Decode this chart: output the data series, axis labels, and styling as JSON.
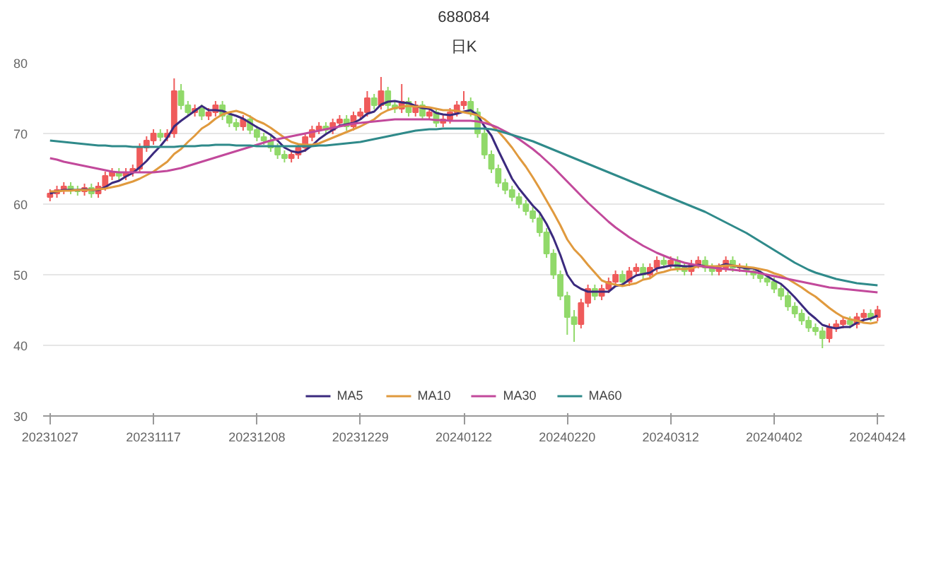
{
  "chart_data": {
    "type": "candlestick",
    "title": "688084",
    "subtitle": "日K",
    "categories": [
      "20231027",
      null,
      null,
      null,
      null,
      null,
      null,
      null,
      null,
      null,
      null,
      null,
      null,
      null,
      null,
      "20231117",
      null,
      null,
      null,
      null,
      null,
      null,
      null,
      null,
      null,
      null,
      null,
      null,
      null,
      null,
      "20231208",
      null,
      null,
      null,
      null,
      null,
      null,
      null,
      null,
      null,
      null,
      null,
      null,
      null,
      null,
      "20231229",
      null,
      null,
      null,
      null,
      null,
      null,
      null,
      null,
      null,
      null,
      null,
      null,
      null,
      null,
      "20240122",
      null,
      null,
      null,
      null,
      null,
      null,
      null,
      null,
      null,
      null,
      null,
      null,
      null,
      null,
      "20240220",
      null,
      null,
      null,
      null,
      null,
      null,
      null,
      null,
      null,
      null,
      null,
      null,
      null,
      null,
      "20240312",
      null,
      null,
      null,
      null,
      null,
      null,
      null,
      null,
      null,
      null,
      null,
      null,
      null,
      null,
      "20240402",
      null,
      null,
      null,
      null,
      null,
      null,
      null,
      null,
      null,
      null,
      null,
      null,
      null,
      null,
      "20240424"
    ],
    "ohlc": [
      [
        61,
        62.1,
        60.4,
        61.5
      ],
      [
        61.5,
        62.6,
        60.9,
        62
      ],
      [
        62,
        63.1,
        61.4,
        62.5
      ],
      [
        62.5,
        63.1,
        61.4,
        62
      ],
      [
        62,
        62.6,
        61.2,
        61.8
      ],
      [
        61.8,
        62.9,
        61.2,
        62.3
      ],
      [
        62.3,
        62.9,
        60.9,
        61.5
      ],
      [
        61.5,
        63.1,
        60.9,
        62.5
      ],
      [
        62.5,
        64.6,
        61.9,
        64
      ],
      [
        64,
        65.1,
        63.4,
        64.5
      ],
      [
        64.5,
        65.1,
        63.4,
        64
      ],
      [
        64,
        65.1,
        63.4,
        64.5
      ],
      [
        64.5,
        65.6,
        63.9,
        65
      ],
      [
        65,
        68.6,
        64.4,
        68
      ],
      [
        68,
        69.6,
        67.4,
        69
      ],
      [
        69,
        70.6,
        68.4,
        70
      ],
      [
        70,
        70.6,
        68.9,
        69.5
      ],
      [
        69.5,
        70.6,
        68.9,
        70
      ],
      [
        70,
        77.8,
        69.4,
        76
      ],
      [
        76,
        77,
        73.4,
        74
      ],
      [
        74,
        74.6,
        72.4,
        73
      ],
      [
        73,
        74.1,
        72.4,
        73.5
      ],
      [
        73.5,
        74.1,
        71.9,
        72.5
      ],
      [
        72.5,
        73.6,
        71.9,
        73
      ],
      [
        73,
        74.6,
        72.4,
        74
      ],
      [
        74,
        74.6,
        71.9,
        72.5
      ],
      [
        72.5,
        73.1,
        70.9,
        71.5
      ],
      [
        71.5,
        72.1,
        70.4,
        71
      ],
      [
        71,
        72.6,
        70.4,
        72
      ],
      [
        72,
        72.6,
        69.9,
        70.5
      ],
      [
        70.5,
        71.1,
        68.9,
        69.5
      ],
      [
        69.5,
        70.1,
        68.4,
        69
      ],
      [
        69,
        69.6,
        67.4,
        68
      ],
      [
        68,
        68.6,
        66.4,
        67
      ],
      [
        67,
        67.6,
        65.9,
        66.5
      ],
      [
        66.5,
        67.6,
        65.9,
        67
      ],
      [
        67,
        68.6,
        66.4,
        68
      ],
      [
        68,
        70.1,
        67.4,
        69.5
      ],
      [
        69.5,
        71.1,
        68.9,
        70.5
      ],
      [
        70.5,
        71.6,
        69.9,
        71
      ],
      [
        71,
        71.6,
        69.9,
        70.5
      ],
      [
        70.5,
        72.1,
        69.9,
        71.5
      ],
      [
        71.5,
        72.6,
        70.9,
        72
      ],
      [
        72,
        72.6,
        70.4,
        71
      ],
      [
        71,
        73.1,
        70.4,
        72.5
      ],
      [
        72.5,
        73.6,
        71.9,
        73
      ],
      [
        73,
        76,
        72.4,
        75
      ],
      [
        75,
        75.6,
        73.4,
        74
      ],
      [
        74,
        78,
        73.4,
        76
      ],
      [
        76,
        76.6,
        73.4,
        74
      ],
      [
        74,
        74.6,
        72.9,
        73.5
      ],
      [
        73.5,
        77,
        72.9,
        74.5
      ],
      [
        74.5,
        75.1,
        72.4,
        73
      ],
      [
        73,
        74.6,
        72.4,
        74
      ],
      [
        74,
        74.6,
        71.9,
        72.5
      ],
      [
        72.5,
        73.6,
        71.9,
        73
      ],
      [
        73,
        73.6,
        70.9,
        71.5
      ],
      [
        71.5,
        72.6,
        70.9,
        72
      ],
      [
        72,
        73.6,
        71.4,
        73
      ],
      [
        73,
        74.6,
        72.4,
        74
      ],
      [
        74,
        76,
        73.4,
        74.5
      ],
      [
        74.5,
        75.1,
        72.4,
        73
      ],
      [
        73,
        73.6,
        69.4,
        70
      ],
      [
        70,
        70.6,
        66.4,
        67
      ],
      [
        67,
        67.6,
        64.4,
        65
      ],
      [
        65,
        65.6,
        62.4,
        63
      ],
      [
        63,
        63.6,
        61.4,
        62
      ],
      [
        62,
        62.6,
        60.4,
        61
      ],
      [
        61,
        61.6,
        59.4,
        60
      ],
      [
        60,
        60.6,
        58.4,
        59
      ],
      [
        59,
        59.6,
        57.4,
        58
      ],
      [
        58,
        58.6,
        55.4,
        56
      ],
      [
        56,
        56.6,
        52.4,
        53
      ],
      [
        53,
        53.6,
        49.4,
        50
      ],
      [
        50,
        50.6,
        46.4,
        47
      ],
      [
        47,
        47.6,
        41.5,
        44
      ],
      [
        44,
        45,
        40.5,
        43
      ],
      [
        43,
        46.6,
        42.4,
        46
      ],
      [
        46,
        48.6,
        45.4,
        48
      ],
      [
        48,
        48.6,
        46.4,
        47
      ],
      [
        47,
        48.6,
        46.4,
        48
      ],
      [
        48,
        49.6,
        47.4,
        49
      ],
      [
        49,
        50.6,
        48.4,
        50
      ],
      [
        50,
        50.6,
        48.4,
        49
      ],
      [
        49,
        51.1,
        48.4,
        50.5
      ],
      [
        50.5,
        51.6,
        49.9,
        51
      ],
      [
        51,
        51.6,
        49.4,
        50
      ],
      [
        50,
        51.6,
        49.4,
        51
      ],
      [
        51,
        52.6,
        50.4,
        52
      ],
      [
        52,
        52.6,
        50.9,
        51.5
      ],
      [
        51.5,
        52.6,
        50.9,
        52
      ],
      [
        52,
        52.6,
        50.4,
        51
      ],
      [
        51,
        51.6,
        49.9,
        50.5
      ],
      [
        50.5,
        52.1,
        49.9,
        51.5
      ],
      [
        51.5,
        52.6,
        50.9,
        52
      ],
      [
        52,
        52.6,
        50.4,
        51
      ],
      [
        51,
        51.6,
        49.9,
        50.5
      ],
      [
        50.5,
        51.6,
        49.9,
        51
      ],
      [
        51,
        52.6,
        50.4,
        52
      ],
      [
        52,
        52.6,
        50.4,
        51
      ],
      [
        51,
        51.6,
        50.4,
        51
      ],
      [
        51,
        51.6,
        49.9,
        50.5
      ],
      [
        50.5,
        51.1,
        49.4,
        50
      ],
      [
        50,
        50.6,
        48.9,
        49.5
      ],
      [
        49.5,
        50.1,
        48.4,
        49
      ],
      [
        49,
        49.6,
        47.4,
        48
      ],
      [
        48,
        48.6,
        46.4,
        47
      ],
      [
        47,
        47.6,
        44.9,
        45.5
      ],
      [
        45.5,
        46.1,
        43.9,
        44.5
      ],
      [
        44.5,
        45.1,
        42.9,
        43.5
      ],
      [
        43.5,
        44.1,
        41.9,
        42.5
      ],
      [
        42.5,
        43.1,
        41.4,
        42
      ],
      [
        42,
        42.6,
        39.6,
        41
      ],
      [
        41,
        43.1,
        40.4,
        42.5
      ],
      [
        42.5,
        43.6,
        41.9,
        43
      ],
      [
        43,
        44.1,
        42.4,
        43.5
      ],
      [
        43.5,
        44.1,
        42.4,
        43
      ],
      [
        43,
        44.6,
        42.4,
        44
      ],
      [
        44,
        45.1,
        43.4,
        44.5
      ],
      [
        44.5,
        45.1,
        43.4,
        44
      ],
      [
        44,
        45.6,
        43.4,
        45
      ]
    ],
    "colors": [
      "#ef5b5b",
      "#ef5b5b",
      "#ef5b5b",
      "#91d96a",
      "#91d96a",
      "#ef5b5b",
      "#91d96a",
      "#ef5b5b",
      "#ef5b5b",
      "#ef5b5b",
      "#91d96a",
      "#ef5b5b",
      "#ef5b5b",
      "#ef5b5b",
      "#ef5b5b",
      "#ef5b5b",
      "#91d96a",
      "#ef5b5b",
      "#ef5b5b",
      "#91d96a",
      "#91d96a",
      "#ef5b5b",
      "#91d96a",
      "#ef5b5b",
      "#ef5b5b",
      "#91d96a",
      "#91d96a",
      "#91d96a",
      "#ef5b5b",
      "#91d96a",
      "#91d96a",
      "#91d96a",
      "#91d96a",
      "#91d96a",
      "#91d96a",
      "#ef5b5b",
      "#ef5b5b",
      "#ef5b5b",
      "#ef5b5b",
      "#ef5b5b",
      "#91d96a",
      "#ef5b5b",
      "#ef5b5b",
      "#91d96a",
      "#ef5b5b",
      "#ef5b5b",
      "#ef5b5b",
      "#91d96a",
      "#ef5b5b",
      "#91d96a",
      "#91d96a",
      "#ef5b5b",
      "#91d96a",
      "#ef5b5b",
      "#91d96a",
      "#ef5b5b",
      "#91d96a",
      "#ef5b5b",
      "#ef5b5b",
      "#ef5b5b",
      "#ef5b5b",
      "#91d96a",
      "#91d96a",
      "#91d96a",
      "#91d96a",
      "#91d96a",
      "#91d96a",
      "#91d96a",
      "#91d96a",
      "#91d96a",
      "#91d96a",
      "#91d96a",
      "#91d96a",
      "#91d96a",
      "#91d96a",
      "#91d96a",
      "#91d96a",
      "#ef5b5b",
      "#ef5b5b",
      "#91d96a",
      "#ef5b5b",
      "#ef5b5b",
      "#ef5b5b",
      "#91d96a",
      "#ef5b5b",
      "#ef5b5b",
      "#91d96a",
      "#ef5b5b",
      "#ef5b5b",
      "#91d96a",
      "#ef5b5b",
      "#91d96a",
      "#91d96a",
      "#ef5b5b",
      "#ef5b5b",
      "#91d96a",
      "#91d96a",
      "#ef5b5b",
      "#ef5b5b",
      "#91d96a",
      "#ef5b5b",
      "#91d96a",
      "#91d96a",
      "#91d96a",
      "#91d96a",
      "#91d96a",
      "#91d96a",
      "#91d96a",
      "#91d96a",
      "#91d96a",
      "#91d96a",
      "#91d96a",
      "#91d96a",
      "#ef5b5b",
      "#ef5b5b",
      "#ef5b5b",
      "#91d96a",
      "#ef5b5b",
      "#ef5b5b",
      "#91d96a",
      "#ef5b5b"
    ],
    "series": [
      {
        "name": "MA5",
        "type": "line",
        "color": "#3b2a7e",
        "values": [
          61.5,
          61.8,
          62,
          62,
          62,
          62.1,
          62,
          62,
          62.4,
          63,
          63.3,
          63.9,
          64.4,
          65.2,
          66.1,
          67.2,
          68.2,
          69.4,
          71,
          71.8,
          72.5,
          73.2,
          73.9,
          73.3,
          73.3,
          73.2,
          72.8,
          72.5,
          72.1,
          71.5,
          70.9,
          70.4,
          69.8,
          69,
          68,
          67.5,
          67.3,
          67.6,
          68.3,
          69.2,
          69.9,
          70.5,
          71.1,
          71.3,
          71.5,
          72,
          72.8,
          73.1,
          74.1,
          74.5,
          74.6,
          74.4,
          74.3,
          73.9,
          73.6,
          73.5,
          72.9,
          72.7,
          72.6,
          72.8,
          73.1,
          73.3,
          72.6,
          71,
          69.7,
          67.6,
          65.6,
          63.6,
          62.2,
          61,
          59.8,
          58.8,
          57.2,
          55.2,
          52.8,
          50,
          48.6,
          48,
          47.6,
          47.6,
          47.6,
          47.6,
          48.4,
          48.6,
          49.3,
          49.9,
          50.1,
          50.3,
          50.9,
          51.1,
          51.3,
          51.3,
          51.2,
          51.2,
          51.4,
          51.2,
          51.1,
          51.2,
          51.5,
          51.3,
          51.1,
          50.9,
          50.9,
          50.4,
          49.8,
          49.2,
          48.7,
          47.8,
          46.8,
          45.7,
          44.6,
          43.8,
          42.9,
          42.6,
          42.4,
          42.6,
          42.6,
          43.2,
          43.6,
          43.8,
          44.2
        ]
      },
      {
        "name": "MA10",
        "type": "line",
        "color": "#e09a3e",
        "values": [
          61.8,
          61.8,
          61.9,
          61.9,
          62,
          62,
          62,
          62.1,
          62.2,
          62.4,
          62.6,
          62.9,
          63.2,
          63.6,
          64.1,
          64.6,
          65.3,
          66,
          67.1,
          67.8,
          68.8,
          69.7,
          70.7,
          71.3,
          72.1,
          72.7,
          73,
          73.2,
          72.9,
          72.4,
          71.8,
          71.4,
          70.8,
          70.1,
          69.4,
          68.8,
          68.5,
          68.4,
          68.4,
          68.6,
          69,
          69.4,
          69.8,
          70.2,
          70.6,
          71,
          71.5,
          72,
          72.8,
          73.3,
          73.6,
          73.8,
          73.9,
          73.8,
          73.8,
          73.7,
          73.5,
          73.3,
          73.3,
          73.2,
          73,
          72.8,
          72.6,
          72,
          71.2,
          70.3,
          69.2,
          68,
          66.6,
          65.3,
          63.8,
          62.2,
          60.5,
          58.8,
          57,
          55,
          53.6,
          52.6,
          51.4,
          50.3,
          49.2,
          48.8,
          48.6,
          48.4,
          48.6,
          48.8,
          49.3,
          49.5,
          50.2,
          50.4,
          50.7,
          50.8,
          50.8,
          50.9,
          51.2,
          51.2,
          51.2,
          51.2,
          51.3,
          51.3,
          51.2,
          51.1,
          51,
          50.8,
          50.6,
          50.2,
          49.9,
          49.4,
          48.8,
          48.2,
          47.5,
          46.9,
          46.1,
          45.3,
          44.6,
          44,
          43.7,
          43.5,
          43.2,
          43.1,
          43.3
        ]
      },
      {
        "name": "MA30",
        "type": "line",
        "color": "#c2499b",
        "values": [
          66.5,
          66.3,
          66,
          65.8,
          65.6,
          65.4,
          65.2,
          65,
          64.8,
          64.6,
          64.5,
          64.5,
          64.5,
          64.5,
          64.5,
          64.5,
          64.6,
          64.7,
          64.9,
          65.1,
          65.4,
          65.7,
          66,
          66.3,
          66.6,
          66.9,
          67.2,
          67.5,
          67.8,
          68.1,
          68.4,
          68.7,
          69,
          69.2,
          69.4,
          69.6,
          69.8,
          70,
          70.2,
          70.4,
          70.6,
          70.8,
          71,
          71.2,
          71.4,
          71.5,
          71.6,
          71.7,
          71.8,
          71.9,
          72,
          72,
          72,
          72,
          72,
          72,
          71.9,
          71.9,
          71.8,
          71.8,
          71.8,
          71.8,
          71.7,
          71.5,
          71.2,
          70.8,
          70.3,
          69.8,
          69.2,
          68.5,
          67.8,
          67,
          66.1,
          65.2,
          64.2,
          63.2,
          62.2,
          61.2,
          60.2,
          59.3,
          58.4,
          57.5,
          56.7,
          56,
          55.3,
          54.7,
          54.1,
          53.6,
          53.1,
          52.7,
          52.3,
          52,
          51.7,
          51.5,
          51.3,
          51.1,
          51,
          50.9,
          50.8,
          50.7,
          50.6,
          50.5,
          50.4,
          50.2,
          50,
          49.8,
          49.6,
          49.4,
          49.2,
          49,
          48.8,
          48.6,
          48.4,
          48.2,
          48.1,
          48,
          47.9,
          47.8,
          47.7,
          47.6,
          47.5
        ]
      },
      {
        "name": "MA60",
        "type": "line",
        "color": "#2f8a8a",
        "values": [
          69,
          68.9,
          68.8,
          68.7,
          68.6,
          68.5,
          68.4,
          68.3,
          68.3,
          68.2,
          68.2,
          68.2,
          68.1,
          68.1,
          68.1,
          68.1,
          68.1,
          68.1,
          68.1,
          68.2,
          68.2,
          68.2,
          68.3,
          68.3,
          68.4,
          68.4,
          68.4,
          68.3,
          68.3,
          68.3,
          68.2,
          68.2,
          68.2,
          68.2,
          68.2,
          68.2,
          68.2,
          68.2,
          68.2,
          68.3,
          68.3,
          68.4,
          68.5,
          68.6,
          68.7,
          68.8,
          69,
          69.2,
          69.4,
          69.6,
          69.8,
          70,
          70.2,
          70.4,
          70.5,
          70.6,
          70.6,
          70.7,
          70.7,
          70.7,
          70.7,
          70.7,
          70.7,
          70.7,
          70.6,
          70.4,
          70.1,
          69.8,
          69.5,
          69.2,
          68.9,
          68.5,
          68.1,
          67.7,
          67.3,
          66.9,
          66.5,
          66.1,
          65.7,
          65.3,
          64.9,
          64.5,
          64.1,
          63.7,
          63.3,
          62.9,
          62.5,
          62.1,
          61.7,
          61.3,
          60.9,
          60.5,
          60.1,
          59.7,
          59.3,
          58.9,
          58.4,
          57.9,
          57.4,
          56.9,
          56.4,
          55.9,
          55.3,
          54.7,
          54.1,
          53.5,
          52.9,
          52.3,
          51.7,
          51.2,
          50.7,
          50.3,
          50,
          49.7,
          49.4,
          49.2,
          49,
          48.8,
          48.7,
          48.6,
          48.5
        ]
      }
    ],
    "ylim": [
      30,
      80
    ],
    "yticks": [
      30,
      40,
      50,
      60,
      70,
      80
    ],
    "grid": "y",
    "legend": "bottom",
    "marker": "none"
  }
}
